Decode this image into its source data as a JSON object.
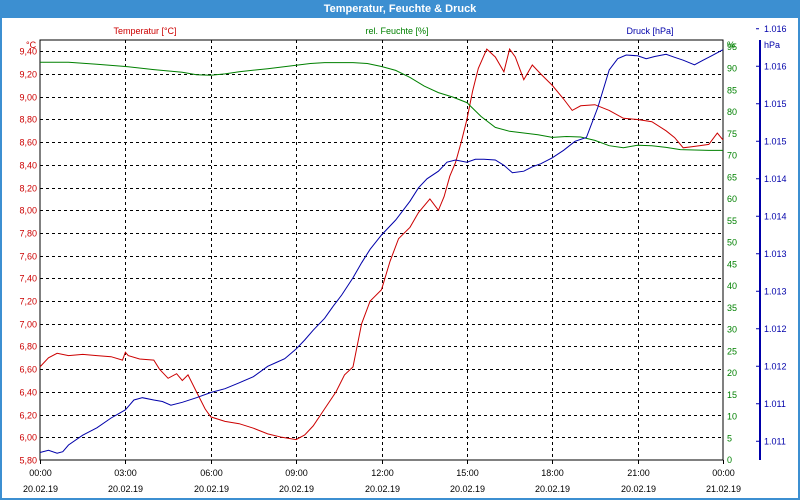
{
  "window": {
    "title": "Temperatur, Feuchte & Druck"
  },
  "colors": {
    "temperature": "#cc0000",
    "humidity": "#008000",
    "pressure": "#0000aa",
    "titlebar": "#3c8fd1",
    "grid": "#000000"
  },
  "chart_data": {
    "type": "line",
    "title": "Temperatur, Feuchte & Druck",
    "x_tick_labels": [
      [
        "00:00",
        "20.02.19"
      ],
      [
        "03:00",
        "20.02.19"
      ],
      [
        "06:00",
        "20.02.19"
      ],
      [
        "09:00",
        "20.02.19"
      ],
      [
        "12:00",
        "20.02.19"
      ],
      [
        "15:00",
        "20.02.19"
      ],
      [
        "18:00",
        "20.02.19"
      ],
      [
        "21:00",
        "20.02.19"
      ],
      [
        "00:00",
        "21.02.19"
      ]
    ],
    "x_range_hours": [
      0,
      24
    ],
    "axes": {
      "left": {
        "unit": "°C",
        "label": "Temperatur [°C]",
        "range": [
          5.8,
          9.5
        ],
        "ticks": [
          "5,80",
          "6,00",
          "6,20",
          "6,40",
          "6,60",
          "6,80",
          "7,00",
          "7,20",
          "7,40",
          "7,60",
          "7,80",
          "8,00",
          "8,20",
          "8,40",
          "8,60",
          "8,80",
          "9,00",
          "9,20",
          "9,40"
        ]
      },
      "right1": {
        "unit": "%",
        "label": "rel. Feuchte [%]",
        "range": [
          0,
          96.6
        ],
        "ticks": [
          "0",
          "5",
          "10",
          "15",
          "20",
          "25",
          "30",
          "35",
          "40",
          "45",
          "50",
          "55",
          "60",
          "65",
          "70",
          "75",
          "80",
          "85",
          "90",
          "95",
          "%"
        ]
      },
      "right2": {
        "unit": "hPa",
        "label": "Druck [hPa]",
        "range": [
          1010.75,
          1016.35
        ],
        "ticks": [
          "1.011",
          "1.011",
          "1.012",
          "1.012",
          "1.013",
          "1.013",
          "1.014",
          "1.014",
          "1.015",
          "1.015",
          "1.016",
          "1.016"
        ]
      }
    },
    "series": [
      {
        "name": "Temperatur [°C]",
        "axis": "left",
        "x": [
          0,
          0.3,
          0.6,
          1,
          1.5,
          2,
          2.5,
          2.9,
          3,
          3.1,
          3.5,
          4,
          4.2,
          4.5,
          4.8,
          5,
          5.2,
          5.5,
          5.8,
          6,
          6.5,
          7,
          7.5,
          8,
          8.5,
          9,
          9.3,
          9.6,
          10,
          10.4,
          10.7,
          11,
          11.3,
          11.6,
          12,
          12.3,
          12.6,
          13,
          13.3,
          13.7,
          14,
          14.2,
          14.4,
          14.6,
          14.8,
          15,
          15.2,
          15.4,
          15.7,
          16,
          16.3,
          16.5,
          16.7,
          17,
          17.3,
          17.6,
          18,
          18.4,
          18.7,
          19,
          19.5,
          20,
          20.5,
          21,
          21.5,
          22,
          22.3,
          22.6,
          22.9,
          23.2,
          23.5,
          23.8,
          24
        ],
        "values": [
          6.62,
          6.7,
          6.74,
          6.72,
          6.73,
          6.72,
          6.71,
          6.68,
          6.75,
          6.72,
          6.69,
          6.68,
          6.6,
          6.52,
          6.56,
          6.5,
          6.55,
          6.4,
          6.25,
          6.18,
          6.14,
          6.12,
          6.08,
          6.03,
          6.0,
          5.98,
          6.02,
          6.1,
          6.25,
          6.4,
          6.55,
          6.62,
          7.0,
          7.2,
          7.3,
          7.55,
          7.75,
          7.85,
          7.98,
          8.1,
          8.0,
          8.12,
          8.3,
          8.42,
          8.6,
          8.8,
          9.05,
          9.25,
          9.42,
          9.35,
          9.22,
          9.42,
          9.35,
          9.15,
          9.28,
          9.2,
          9.1,
          8.98,
          8.88,
          8.92,
          8.93,
          8.88,
          8.81,
          8.8,
          8.78,
          8.7,
          8.64,
          8.55,
          8.56,
          8.57,
          8.58,
          8.68,
          8.62
        ]
      },
      {
        "name": "rel. Feuchte [%]",
        "axis": "right1",
        "x": [
          0,
          1,
          2,
          3,
          4,
          5,
          5.5,
          6,
          6.5,
          7,
          8,
          9,
          9.5,
          10,
          11,
          11.5,
          12,
          12.5,
          13,
          13.5,
          14,
          14.5,
          15,
          15.5,
          16,
          16.5,
          17,
          17.5,
          18,
          18.5,
          19,
          19.5,
          20,
          20.5,
          21,
          21.5,
          22,
          22.5,
          23,
          23.5,
          24
        ],
        "values": [
          91.5,
          91.5,
          91,
          90.5,
          89.8,
          89.2,
          88.6,
          88.5,
          88.8,
          89.3,
          90,
          90.8,
          91.2,
          91.4,
          91.4,
          91.2,
          90.5,
          89.6,
          88,
          86,
          84.5,
          83.5,
          82.2,
          79,
          76.5,
          75.6,
          75.2,
          74.8,
          74.2,
          74.4,
          74.3,
          73.5,
          72.3,
          71.8,
          72.4,
          72.3,
          71.9,
          71.4,
          71.3,
          71.2,
          71.2
        ]
      },
      {
        "name": "Druck [hPa]",
        "axis": "right2",
        "x": [
          0,
          0.3,
          0.6,
          0.8,
          1,
          1.5,
          2,
          2.5,
          3,
          3.3,
          3.6,
          4,
          4.3,
          4.6,
          5,
          5.5,
          6,
          6.5,
          7,
          7.5,
          8,
          8.3,
          8.6,
          9,
          9.3,
          9.6,
          10,
          10.3,
          10.6,
          11,
          11.3,
          11.6,
          12,
          12.5,
          13,
          13.3,
          13.6,
          14,
          14.3,
          14.6,
          15,
          15.3,
          15.6,
          16,
          16.3,
          16.6,
          17,
          17.3,
          17.6,
          18,
          18.4,
          18.8,
          19.2,
          19.6,
          20,
          20.3,
          20.6,
          21,
          21.3,
          21.6,
          22,
          22.3,
          22.6,
          23,
          23.3,
          23.6,
          24
        ],
        "values": [
          1010.85,
          1010.88,
          1010.84,
          1010.86,
          1010.95,
          1011.08,
          1011.18,
          1011.31,
          1011.42,
          1011.55,
          1011.58,
          1011.55,
          1011.53,
          1011.48,
          1011.52,
          1011.58,
          1011.65,
          1011.7,
          1011.78,
          1011.86,
          1012.0,
          1012.05,
          1012.1,
          1012.23,
          1012.35,
          1012.48,
          1012.64,
          1012.8,
          1012.95,
          1013.18,
          1013.38,
          1013.56,
          1013.75,
          1013.95,
          1014.2,
          1014.38,
          1014.5,
          1014.6,
          1014.72,
          1014.75,
          1014.72,
          1014.76,
          1014.76,
          1014.75,
          1014.68,
          1014.58,
          1014.6,
          1014.66,
          1014.7,
          1014.78,
          1014.88,
          1015.0,
          1015.05,
          1015.45,
          1015.95,
          1016.1,
          1016.15,
          1016.14,
          1016.1,
          1016.13,
          1016.16,
          1016.12,
          1016.08,
          1016.02,
          1016.08,
          1016.14,
          1016.22
        ]
      }
    ]
  }
}
